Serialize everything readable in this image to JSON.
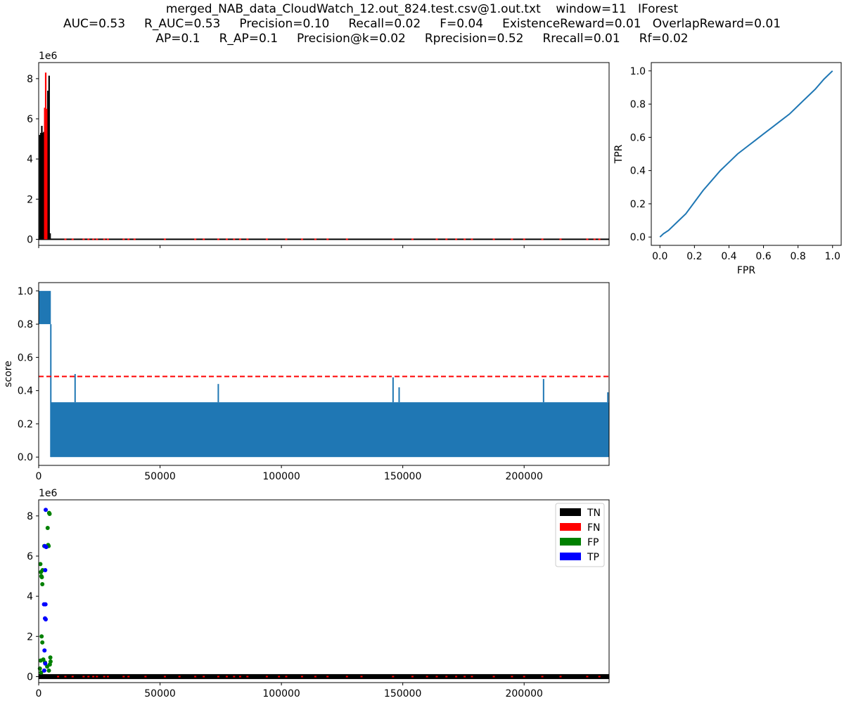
{
  "header": {
    "line1": "merged_NAB_data_CloudWatch_12.out_824.test.csv@1.out.txt    window=11   IForest",
    "line2": "AUC=0.53     R_AUC=0.53     Precision=0.10     Recall=0.02     F=0.04     ExistenceReward=0.01   OverlapReward=0.01",
    "line3": "AP=0.1     R_AP=0.1     Precision@k=0.02     Rprecision=0.52     Rrecall=0.01     Rf=0.02"
  },
  "colors": {
    "series_blue": "#1f77b4",
    "normal": "#000000",
    "anomaly": "#ff0000",
    "threshold": "#ff0000",
    "tn": "#000000",
    "fn": "#ff0000",
    "fp": "#008000",
    "tp": "#0000ff"
  },
  "chart_data": [
    {
      "id": "series",
      "type": "line",
      "offset_label": "1e6",
      "xlim": [
        0,
        235000
      ],
      "ylim": [
        -300000,
        8800000
      ],
      "yticks": [
        0,
        2,
        4,
        6,
        8
      ],
      "xticks": [
        0,
        50000,
        100000,
        150000,
        200000
      ],
      "xtick_labels_shown": false,
      "normal_peaks": [
        [
          200,
          200000.0
        ],
        [
          500,
          5200000.0
        ],
        [
          900,
          5300000.0
        ],
        [
          1300,
          5650000.0
        ],
        [
          1700,
          5300000.0
        ],
        [
          2100,
          5350000.0
        ],
        [
          3800,
          7400000.0
        ],
        [
          4300,
          8150000.0
        ],
        [
          4700,
          300000.0
        ]
      ],
      "anomaly_peaks": [
        [
          2500,
          6550000.0
        ],
        [
          2900,
          8300000.0
        ],
        [
          3300,
          6500000.0
        ]
      ],
      "baseline_anomaly_ticks": [
        11000,
        14000,
        18500,
        20500,
        22500,
        24000,
        27000,
        28500,
        35000,
        37000,
        39500,
        52000,
        64500,
        68000,
        74000,
        77500,
        80500,
        83000,
        86000,
        94000,
        102000,
        108500,
        114000,
        119000,
        127000,
        146000,
        154000,
        164000,
        168000,
        172000,
        175500,
        178500,
        187500,
        195000,
        200000,
        207500,
        215000,
        226000,
        229000,
        231000
      ]
    },
    {
      "id": "roc",
      "type": "line",
      "xlabel": "FPR",
      "ylabel": "TPR",
      "xlim": [
        -0.05,
        1.05
      ],
      "ylim": [
        -0.05,
        1.05
      ],
      "xticks": [
        0.0,
        0.2,
        0.4,
        0.6,
        0.8,
        1.0
      ],
      "yticks": [
        0.0,
        0.2,
        0.4,
        0.6,
        0.8,
        1.0
      ],
      "x": [
        0.0,
        0.02,
        0.05,
        0.1,
        0.15,
        0.2,
        0.25,
        0.3,
        0.35,
        0.4,
        0.45,
        0.5,
        0.55,
        0.6,
        0.65,
        0.7,
        0.75,
        0.8,
        0.85,
        0.9,
        0.95,
        1.0
      ],
      "y": [
        0.0,
        0.02,
        0.04,
        0.09,
        0.14,
        0.21,
        0.28,
        0.34,
        0.4,
        0.45,
        0.5,
        0.54,
        0.58,
        0.62,
        0.66,
        0.7,
        0.74,
        0.79,
        0.84,
        0.89,
        0.95,
        1.0
      ]
    },
    {
      "id": "score",
      "type": "line",
      "ylabel": "score",
      "xlim": [
        0,
        235000
      ],
      "ylim": [
        -0.05,
        1.05
      ],
      "xticks": [
        0,
        50000,
        100000,
        150000,
        200000
      ],
      "yticks": [
        0.0,
        0.2,
        0.4,
        0.6,
        0.8,
        1.0
      ],
      "threshold": 0.485,
      "high_segment": {
        "x_end": 5000,
        "band": [
          0.8,
          1.0
        ]
      },
      "base_band": [
        0.0,
        0.33
      ],
      "spikes": [
        [
          15000,
          0.5
        ],
        [
          74000,
          0.44
        ],
        [
          146000,
          0.48
        ],
        [
          148500,
          0.42
        ],
        [
          208000,
          0.47
        ],
        [
          234500,
          0.39
        ]
      ]
    },
    {
      "id": "classification",
      "type": "scatter",
      "offset_label": "1e6",
      "xlim": [
        0,
        235000
      ],
      "ylim": [
        -300000,
        8800000
      ],
      "xticks": [
        0,
        50000,
        100000,
        150000,
        200000
      ],
      "yticks": [
        0,
        2,
        4,
        6,
        8
      ],
      "legend": [
        "TN",
        "FN",
        "FP",
        "TP"
      ],
      "legend_position": "upper-right",
      "fp_points": [
        [
          700,
          5600000.0
        ],
        [
          900,
          5200000.0
        ],
        [
          1100,
          5000000.0
        ],
        [
          1300,
          4950000.0
        ],
        [
          1500,
          4600000.0
        ],
        [
          1600,
          5300000.0
        ],
        [
          1200,
          2000000.0
        ],
        [
          1500,
          1700000.0
        ],
        [
          800,
          800000.0
        ],
        [
          1900,
          850000.0
        ],
        [
          3700,
          7400000.0
        ],
        [
          4300,
          8150000.0
        ],
        [
          4500,
          8100000.0
        ],
        [
          4100,
          6500000.0
        ],
        [
          3900,
          6550000.0
        ],
        [
          2300,
          6500000.0
        ],
        [
          4800,
          950000.0
        ],
        [
          4600,
          600000.0
        ],
        [
          4200,
          300000.0
        ],
        [
          500,
          400000.0
        ],
        [
          1000,
          200000.0
        ],
        [
          2600,
          700000.0
        ],
        [
          3500,
          500000.0
        ],
        [
          4900,
          750000.0
        ]
      ],
      "tp_points": [
        [
          2900,
          8300000.0
        ],
        [
          2500,
          6500000.0
        ],
        [
          3100,
          6450000.0
        ],
        [
          2700,
          5300000.0
        ],
        [
          2200,
          3600000.0
        ],
        [
          2800,
          3600000.0
        ],
        [
          2600,
          2900000.0
        ],
        [
          2900,
          2850000.0
        ],
        [
          2400,
          1300000.0
        ],
        [
          2700,
          650000.0
        ],
        [
          2300,
          300000.0
        ]
      ],
      "fn_ticks": [
        8000,
        11000,
        14000,
        18500,
        20500,
        22500,
        24000,
        27000,
        28500,
        35000,
        37000,
        44000,
        52000,
        58000,
        64500,
        68000,
        74000,
        77500,
        80500,
        83000,
        86000,
        94000,
        99000,
        102000,
        108500,
        114000,
        119000,
        127000,
        133000,
        146000,
        154000,
        160000,
        164000,
        168000,
        172000,
        175500,
        178500,
        187500,
        195000,
        200000,
        207500,
        215000,
        226000,
        231000
      ]
    }
  ]
}
